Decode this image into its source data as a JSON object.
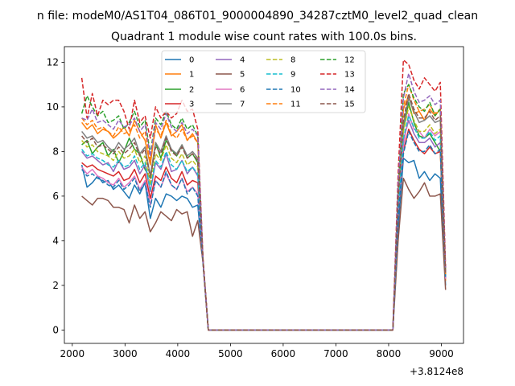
{
  "chart_data": {
    "type": "line",
    "suptitle": "n file: modeM0/AS1T04_086T01_9000004890_34287cztM0_level2_quad_clean",
    "title": "Quadrant 1 module wise count rates with 100.0s bins.",
    "xlabel": "",
    "ylabel": "",
    "x_offset_label": "+3.8124e8",
    "xlim": [
      1850,
      9420
    ],
    "ylim": [
      -0.6,
      12.7
    ],
    "xticks": [
      2000,
      3000,
      4000,
      5000,
      6000,
      7000,
      8000,
      9000
    ],
    "xtick_labels": [
      "2000",
      "3000",
      "4000",
      "5000",
      "6000",
      "7000",
      "8000",
      "9000"
    ],
    "yticks": [
      0,
      2,
      4,
      6,
      8,
      10,
      12
    ],
    "ytick_labels": [
      "0",
      "2",
      "4",
      "6",
      "8",
      "10",
      "12"
    ],
    "grid": false,
    "legend_position": "top-center",
    "x": [
      2180,
      2280,
      2380,
      2480,
      2580,
      2680,
      2780,
      2880,
      2980,
      3080,
      3180,
      3280,
      3380,
      3480,
      3580,
      3680,
      3780,
      3880,
      3980,
      4080,
      4180,
      4280,
      4380,
      4480,
      4580,
      8080,
      8180,
      8280,
      8380,
      8480,
      8580,
      8680,
      8780,
      8880,
      8980,
      9080
    ],
    "series": [
      {
        "name": "0",
        "color": "#1f77b4",
        "dashed": false,
        "values": [
          7.4,
          6.4,
          6.6,
          6.9,
          6.6,
          6.7,
          6.3,
          6.5,
          6.2,
          5.9,
          6.5,
          6.1,
          6.6,
          5.0,
          5.9,
          5.5,
          6.1,
          6.0,
          5.8,
          6.0,
          5.9,
          5.5,
          5.6,
          3.0,
          0.0,
          0.0,
          4.5,
          7.7,
          7.5,
          7.6,
          6.8,
          7.1,
          6.7,
          7.0,
          6.8,
          2.0
        ]
      },
      {
        "name": "1",
        "color": "#ff7f0e",
        "dashed": false,
        "values": [
          9.3,
          9.0,
          9.2,
          8.8,
          9.0,
          8.9,
          8.6,
          8.8,
          9.1,
          8.7,
          9.4,
          8.9,
          8.5,
          7.4,
          9.2,
          8.6,
          9.3,
          8.7,
          8.9,
          9.2,
          8.5,
          8.8,
          8.4,
          3.0,
          0.0,
          0.0,
          5.9,
          9.9,
          10.5,
          9.7,
          9.8,
          9.4,
          9.9,
          9.6,
          9.9,
          2.2
        ]
      },
      {
        "name": "2",
        "color": "#2ca02c",
        "dashed": false,
        "values": [
          8.3,
          8.5,
          7.9,
          8.2,
          8.4,
          7.8,
          8.1,
          7.5,
          8.0,
          8.6,
          8.1,
          7.9,
          7.2,
          6.8,
          8.4,
          7.7,
          8.5,
          8.1,
          7.8,
          8.3,
          7.7,
          7.9,
          7.5,
          3.0,
          0.0,
          0.0,
          5.6,
          9.0,
          10.2,
          9.3,
          8.7,
          8.6,
          8.8,
          8.4,
          8.0,
          2.3
        ]
      },
      {
        "name": "3",
        "color": "#d62728",
        "dashed": false,
        "values": [
          7.5,
          7.3,
          7.4,
          7.2,
          7.1,
          7.0,
          6.9,
          7.1,
          6.7,
          6.8,
          7.2,
          6.6,
          7.0,
          5.9,
          6.9,
          6.7,
          7.3,
          6.8,
          6.6,
          7.1,
          6.5,
          6.7,
          6.6,
          3.1,
          0.0,
          0.0,
          5.0,
          8.0,
          9.0,
          8.5,
          8.1,
          7.9,
          8.2,
          7.9,
          8.0,
          2.3
        ]
      },
      {
        "name": "4",
        "color": "#9467bd",
        "dashed": false,
        "values": [
          8.0,
          7.7,
          7.8,
          7.6,
          7.4,
          7.5,
          7.1,
          7.6,
          7.2,
          7.3,
          7.6,
          7.0,
          7.4,
          6.2,
          7.5,
          7.2,
          7.9,
          7.1,
          7.2,
          7.6,
          7.0,
          7.3,
          6.9,
          3.1,
          0.0,
          0.0,
          5.4,
          8.5,
          9.4,
          8.8,
          8.4,
          8.4,
          8.6,
          8.2,
          8.4,
          2.4
        ]
      },
      {
        "name": "5",
        "color": "#8c564b",
        "dashed": false,
        "values": [
          6.0,
          5.8,
          5.6,
          5.9,
          5.9,
          5.8,
          5.5,
          5.5,
          5.4,
          4.8,
          5.6,
          5.0,
          5.3,
          4.4,
          4.8,
          5.3,
          5.1,
          4.9,
          5.4,
          5.2,
          5.3,
          4.2,
          4.9,
          3.0,
          0.0,
          0.0,
          4.0,
          6.8,
          6.3,
          5.9,
          6.2,
          6.6,
          6.0,
          6.0,
          6.1,
          1.8
        ]
      },
      {
        "name": "6",
        "color": "#e377c2",
        "dashed": false,
        "values": [
          7.3,
          7.0,
          7.2,
          6.9,
          6.8,
          6.6,
          6.5,
          6.8,
          6.4,
          6.6,
          6.9,
          6.3,
          6.7,
          5.6,
          6.7,
          6.4,
          7.0,
          6.5,
          6.3,
          6.8,
          6.2,
          6.4,
          6.1,
          3.0,
          0.0,
          0.0,
          5.2,
          8.2,
          9.7,
          9.0,
          8.9,
          8.6,
          9.0,
          8.7,
          8.9,
          2.3
        ]
      },
      {
        "name": "7",
        "color": "#7f7f7f",
        "dashed": false,
        "values": [
          8.9,
          8.6,
          8.7,
          8.4,
          8.5,
          8.2,
          8.0,
          8.4,
          8.1,
          8.3,
          8.6,
          7.9,
          8.2,
          6.9,
          8.4,
          8.0,
          8.7,
          8.1,
          7.9,
          8.3,
          7.8,
          8.0,
          7.7,
          3.1,
          0.0,
          0.0,
          5.8,
          9.2,
          10.4,
          9.8,
          9.3,
          9.4,
          9.6,
          9.3,
          9.4,
          2.4
        ]
      },
      {
        "name": "8",
        "color": "#bcbd22",
        "dashed": true,
        "values": [
          8.5,
          8.2,
          8.3,
          8.0,
          7.9,
          7.8,
          7.6,
          8.0,
          7.7,
          7.8,
          8.1,
          7.5,
          7.8,
          6.5,
          7.9,
          7.6,
          8.3,
          7.7,
          7.5,
          7.9,
          7.4,
          7.6,
          7.3,
          3.1,
          0.0,
          0.0,
          5.6,
          8.9,
          10.0,
          9.4,
          8.9,
          8.9,
          9.2,
          8.8,
          9.0,
          2.4
        ]
      },
      {
        "name": "9",
        "color": "#17becf",
        "dashed": true,
        "values": [
          8.1,
          7.8,
          7.9,
          7.7,
          7.6,
          7.4,
          7.3,
          7.6,
          7.3,
          7.4,
          7.8,
          7.2,
          7.5,
          6.3,
          7.6,
          7.3,
          8.0,
          7.4,
          7.2,
          7.6,
          7.1,
          7.3,
          7.0,
          3.1,
          0.0,
          0.0,
          5.4,
          8.6,
          9.6,
          9.1,
          8.6,
          8.6,
          8.9,
          8.5,
          8.7,
          2.4
        ]
      },
      {
        "name": "10",
        "color": "#1f77b4",
        "dashed": true,
        "values": [
          7.2,
          6.9,
          7.0,
          6.8,
          6.7,
          6.5,
          6.4,
          6.7,
          6.3,
          6.5,
          6.8,
          6.2,
          6.6,
          5.5,
          6.7,
          6.4,
          7.1,
          6.5,
          6.3,
          6.8,
          6.1,
          6.4,
          6.0,
          3.0,
          0.0,
          0.0,
          5.0,
          7.9,
          8.9,
          8.4,
          8.0,
          8.0,
          8.3,
          7.9,
          8.1,
          2.3
        ]
      },
      {
        "name": "11",
        "color": "#ff7f0e",
        "dashed": true,
        "values": [
          9.5,
          9.2,
          9.4,
          9.0,
          9.1,
          8.9,
          8.7,
          9.1,
          8.8,
          8.9,
          9.2,
          8.6,
          8.9,
          7.6,
          9.0,
          8.7,
          9.4,
          8.8,
          8.6,
          9.0,
          8.5,
          8.7,
          8.4,
          3.1,
          0.0,
          0.0,
          6.2,
          10.0,
          11.0,
          10.3,
          9.8,
          9.9,
          10.1,
          9.7,
          9.9,
          2.5
        ]
      },
      {
        "name": "12",
        "color": "#2ca02c",
        "dashed": true,
        "values": [
          9.7,
          10.5,
          10.0,
          9.6,
          9.8,
          9.3,
          9.4,
          9.6,
          9.0,
          9.3,
          9.8,
          9.1,
          9.4,
          7.9,
          9.5,
          9.2,
          9.8,
          9.2,
          9.0,
          9.5,
          9.0,
          9.2,
          8.7,
          3.1,
          0.0,
          0.0,
          6.4,
          10.6,
          11.0,
          10.4,
          10.0,
          9.8,
          10.2,
          9.6,
          9.9,
          2.6
        ]
      },
      {
        "name": "13",
        "color": "#d62728",
        "dashed": true,
        "values": [
          11.3,
          9.5,
          10.6,
          9.6,
          10.3,
          10.1,
          10.3,
          10.3,
          9.8,
          9.0,
          10.3,
          9.3,
          9.6,
          8.6,
          10.0,
          9.5,
          9.8,
          9.5,
          9.7,
          10.3,
          9.8,
          9.9,
          9.0,
          3.2,
          0.0,
          0.0,
          7.0,
          12.1,
          11.9,
          11.2,
          10.8,
          11.3,
          11.0,
          10.7,
          11.1,
          2.8
        ]
      },
      {
        "name": "14",
        "color": "#9467bd",
        "dashed": true,
        "values": [
          9.5,
          9.4,
          9.9,
          9.3,
          9.4,
          9.2,
          9.0,
          9.4,
          9.1,
          9.2,
          9.5,
          8.9,
          9.2,
          7.8,
          9.3,
          9.0,
          9.7,
          9.1,
          8.9,
          9.3,
          8.8,
          9.0,
          8.7,
          3.1,
          0.0,
          0.0,
          6.5,
          10.4,
          11.5,
          10.7,
          10.2,
          10.3,
          10.5,
          10.1,
          10.3,
          2.6
        ]
      },
      {
        "name": "15",
        "color": "#8c564b",
        "dashed": true,
        "values": [
          8.7,
          8.4,
          8.6,
          8.2,
          8.3,
          8.1,
          7.9,
          8.2,
          7.9,
          8.1,
          8.4,
          7.8,
          8.1,
          6.8,
          8.2,
          7.9,
          8.6,
          8.0,
          7.8,
          8.2,
          7.7,
          7.9,
          7.6,
          3.1,
          0.0,
          0.0,
          5.9,
          9.4,
          10.6,
          9.9,
          9.5,
          9.5,
          9.8,
          9.4,
          9.6,
          2.5
        ]
      }
    ]
  }
}
